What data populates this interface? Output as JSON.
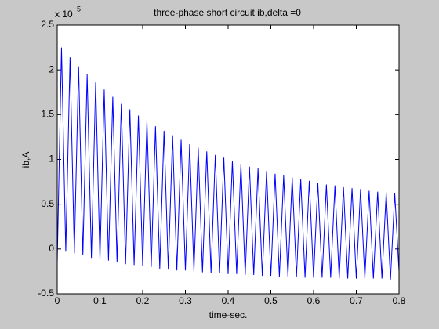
{
  "chart_data": {
    "type": "line",
    "title": "three-phase short circuit ib,delta =0",
    "x_label": "time-sec.",
    "y_label": "ib,A",
    "y_exponent_base": "x 10",
    "y_exponent": "5",
    "color": "#0000ff",
    "x": [
      0,
      0.01,
      0.02,
      0.03,
      0.04,
      0.05,
      0.06,
      0.07,
      0.08,
      0.09,
      0.1,
      0.11,
      0.12,
      0.13,
      0.14,
      0.15,
      0.16,
      0.17,
      0.18,
      0.19,
      0.2,
      0.21,
      0.22,
      0.23,
      0.24,
      0.25,
      0.26,
      0.27,
      0.28,
      0.29,
      0.3,
      0.31,
      0.32,
      0.33,
      0.34,
      0.35,
      0.36,
      0.37,
      0.38,
      0.39,
      0.4,
      0.41,
      0.42,
      0.43,
      0.44,
      0.45,
      0.46,
      0.47,
      0.48,
      0.49,
      0.5,
      0.51,
      0.52,
      0.53,
      0.54,
      0.55,
      0.56,
      0.57,
      0.58,
      0.59,
      0.6,
      0.61,
      0.62,
      0.63,
      0.64,
      0.65,
      0.66,
      0.67,
      0.68,
      0.69,
      0.7,
      0.71,
      0.72,
      0.73,
      0.74,
      0.75,
      0.76,
      0.77,
      0.78,
      0.79,
      0.8
    ],
    "values": [
      -0.15,
      2.25,
      -0.03,
      2.14,
      -0.05,
      2.04,
      -0.07,
      1.95,
      -0.1,
      1.86,
      -0.12,
      1.78,
      -0.13,
      1.7,
      -0.15,
      1.62,
      -0.17,
      1.56,
      -0.18,
      1.49,
      -0.19,
      1.43,
      -0.2,
      1.37,
      -0.22,
      1.32,
      -0.23,
      1.27,
      -0.24,
      1.22,
      -0.24,
      1.17,
      -0.25,
      1.13,
      -0.26,
      1.09,
      -0.27,
      1.05,
      -0.27,
      1.02,
      -0.28,
      0.98,
      -0.28,
      0.95,
      -0.29,
      0.92,
      -0.29,
      0.9,
      -0.3,
      0.87,
      -0.3,
      0.84,
      -0.31,
      0.82,
      -0.31,
      0.8,
      -0.31,
      0.78,
      -0.32,
      0.76,
      -0.32,
      0.74,
      -0.32,
      0.72,
      -0.32,
      0.71,
      -0.33,
      0.69,
      -0.33,
      0.68,
      -0.33,
      0.67,
      -0.33,
      0.65,
      -0.33,
      0.64,
      -0.33,
      0.63,
      -0.34,
      0.62,
      -0.25
    ],
    "xlim": [
      0,
      0.8
    ],
    "xticks": [
      0,
      0.1,
      0.2,
      0.3,
      0.4,
      0.5,
      0.6,
      0.7,
      0.8
    ],
    "ylim": [
      -0.5,
      2.5
    ],
    "yticks": [
      -0.5,
      0,
      0.5,
      1,
      1.5,
      2,
      2.5
    ]
  }
}
